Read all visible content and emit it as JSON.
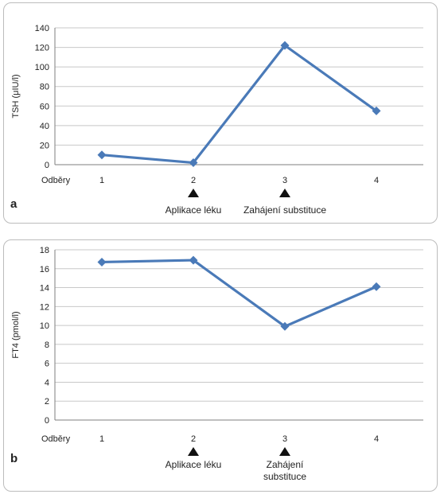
{
  "chart_data": [
    {
      "type": "line",
      "panel_label": "a",
      "ylabel": "TSH (μIU/l)",
      "row_label": "Odběry",
      "categories": [
        "1",
        "2",
        "3",
        "4"
      ],
      "series": [
        {
          "values": [
            10,
            2,
            122,
            55
          ]
        }
      ],
      "ylim": [
        0,
        140
      ],
      "yticks": [
        0,
        20,
        40,
        60,
        80,
        100,
        120,
        140
      ],
      "grid": true,
      "color": "#4a7ab8",
      "markers": [
        {
          "category": "2",
          "lines": [
            "Aplikace léku"
          ]
        },
        {
          "category": "3",
          "lines": [
            "Zahájení substituce"
          ]
        }
      ]
    },
    {
      "type": "line",
      "panel_label": "b",
      "ylabel": "FT4 (pmol/l)",
      "row_label": "Odběry",
      "categories": [
        "1",
        "2",
        "3",
        "4"
      ],
      "series": [
        {
          "values": [
            16.7,
            16.9,
            9.9,
            14.1
          ]
        }
      ],
      "ylim": [
        0,
        18
      ],
      "yticks": [
        0,
        2,
        4,
        6,
        8,
        10,
        12,
        14,
        16,
        18
      ],
      "grid": true,
      "color": "#4a7ab8",
      "markers": [
        {
          "category": "2",
          "lines": [
            "Aplikace léku"
          ]
        },
        {
          "category": "3",
          "lines": [
            "Zahájení",
            "substituce"
          ]
        }
      ]
    }
  ]
}
